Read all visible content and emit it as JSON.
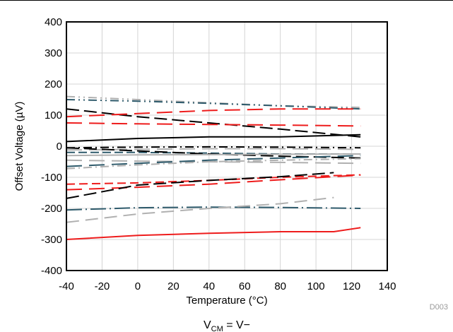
{
  "chart_data": {
    "type": "line",
    "xlabel": "Temperature (°C)",
    "ylabel": "Offset Voltage (µV)",
    "xlim": [
      -40,
      140
    ],
    "ylim": [
      -400,
      400
    ],
    "xticks": [
      -40,
      -20,
      0,
      20,
      40,
      60,
      80,
      100,
      120,
      140
    ],
    "yticks": [
      -400,
      -300,
      -200,
      -100,
      0,
      100,
      200,
      300,
      400
    ],
    "grid": true,
    "figure_code": "D003",
    "caption": "V",
    "caption_sub": "CM",
    "caption_tail": " = V−",
    "series": [
      {
        "color": "#b0b0b0",
        "dash": "12,5,2,5,2,5",
        "points": [
          [
            -40,
            160
          ],
          [
            0,
            150
          ],
          [
            40,
            140
          ],
          [
            80,
            130
          ],
          [
            125,
            125
          ]
        ]
      },
      {
        "color": "#2e5a6b",
        "dash": "12,5,2,5,2,5",
        "points": [
          [
            -40,
            150
          ],
          [
            0,
            145
          ],
          [
            40,
            138
          ],
          [
            80,
            130
          ],
          [
            125,
            120
          ]
        ]
      },
      {
        "color": "#000000",
        "dash": "18,7",
        "points": [
          [
            -40,
            120
          ],
          [
            0,
            95
          ],
          [
            40,
            75
          ],
          [
            80,
            55
          ],
          [
            125,
            30
          ]
        ]
      },
      {
        "color": "#ee1c1c",
        "dash": "22,10",
        "points": [
          [
            -40,
            95
          ],
          [
            0,
            105
          ],
          [
            40,
            115
          ],
          [
            80,
            120
          ],
          [
            125,
            120
          ]
        ]
      },
      {
        "color": "#ee1c1c",
        "dash": "22,10",
        "points": [
          [
            -40,
            75
          ],
          [
            0,
            72
          ],
          [
            40,
            70
          ],
          [
            80,
            68
          ],
          [
            125,
            65
          ]
        ]
      },
      {
        "color": "#000000",
        "dash": "",
        "points": [
          [
            -40,
            15
          ],
          [
            0,
            25
          ],
          [
            40,
            30
          ],
          [
            80,
            30
          ],
          [
            125,
            37
          ]
        ]
      },
      {
        "color": "#000000",
        "dash": "12,5,2,5",
        "points": [
          [
            -40,
            -5
          ],
          [
            0,
            -3
          ],
          [
            40,
            -2
          ],
          [
            80,
            -3
          ],
          [
            125,
            -5
          ]
        ]
      },
      {
        "color": "#b0b0b0",
        "dash": "22,10",
        "points": [
          [
            -40,
            -12
          ],
          [
            0,
            -10
          ],
          [
            40,
            -8
          ],
          [
            80,
            -8
          ],
          [
            125,
            -10
          ]
        ]
      },
      {
        "color": "#2e5a6b",
        "dash": "12,5",
        "points": [
          [
            -40,
            -20
          ],
          [
            0,
            -20
          ],
          [
            40,
            -22
          ],
          [
            80,
            -25
          ],
          [
            125,
            -25
          ]
        ]
      },
      {
        "color": "#000000",
        "dash": "18,7",
        "points": [
          [
            -40,
            -5
          ],
          [
            0,
            -15
          ],
          [
            40,
            -25
          ],
          [
            80,
            -32
          ],
          [
            125,
            -38
          ]
        ]
      },
      {
        "color": "#b0b0b0",
        "dash": "",
        "points": [
          [
            -40,
            -30
          ],
          [
            0,
            -28
          ],
          [
            40,
            -27
          ],
          [
            80,
            -26
          ],
          [
            125,
            -25
          ]
        ]
      },
      {
        "color": "#b0b0b0",
        "dash": "22,10",
        "points": [
          [
            -40,
            -45
          ],
          [
            0,
            -48
          ],
          [
            40,
            -50
          ],
          [
            80,
            -52
          ],
          [
            125,
            -55
          ]
        ]
      },
      {
        "color": "#2e5a6b",
        "dash": "22,10",
        "points": [
          [
            -40,
            -65
          ],
          [
            0,
            -55
          ],
          [
            40,
            -45
          ],
          [
            80,
            -38
          ],
          [
            125,
            -30
          ]
        ]
      },
      {
        "color": "#b0b0b0",
        "dash": "12,5,2,5",
        "points": [
          [
            -40,
            -72
          ],
          [
            0,
            -60
          ],
          [
            40,
            -50
          ],
          [
            80,
            -45
          ],
          [
            125,
            -40
          ]
        ]
      },
      {
        "color": "#ee1c1c",
        "dash": "12,6",
        "points": [
          [
            -40,
            -122
          ],
          [
            0,
            -118
          ],
          [
            40,
            -110
          ],
          [
            80,
            -100
          ],
          [
            125,
            -92
          ]
        ]
      },
      {
        "color": "#ee1c1c",
        "dash": "22,10",
        "points": [
          [
            -40,
            -140
          ],
          [
            0,
            -132
          ],
          [
            40,
            -122
          ],
          [
            80,
            -108
          ],
          [
            125,
            -93
          ]
        ]
      },
      {
        "color": "#000000",
        "dash": "18,7",
        "points": [
          [
            -40,
            -168
          ],
          [
            0,
            -125
          ],
          [
            40,
            -110
          ],
          [
            80,
            -98
          ],
          [
            110,
            -85
          ]
        ]
      },
      {
        "color": "#2e5a6b",
        "dash": "22,5,2,5",
        "points": [
          [
            -40,
            -205
          ],
          [
            0,
            -198
          ],
          [
            40,
            -196
          ],
          [
            80,
            -197
          ],
          [
            125,
            -200
          ]
        ]
      },
      {
        "color": "#b0b0b0",
        "dash": "18,9",
        "points": [
          [
            -40,
            -245
          ],
          [
            0,
            -218
          ],
          [
            40,
            -200
          ],
          [
            80,
            -185
          ],
          [
            110,
            -165
          ]
        ]
      },
      {
        "color": "#ee1c1c",
        "dash": "",
        "points": [
          [
            -40,
            -300
          ],
          [
            0,
            -287
          ],
          [
            40,
            -280
          ],
          [
            80,
            -275
          ],
          [
            110,
            -275
          ],
          [
            125,
            -262
          ]
        ]
      }
    ]
  }
}
